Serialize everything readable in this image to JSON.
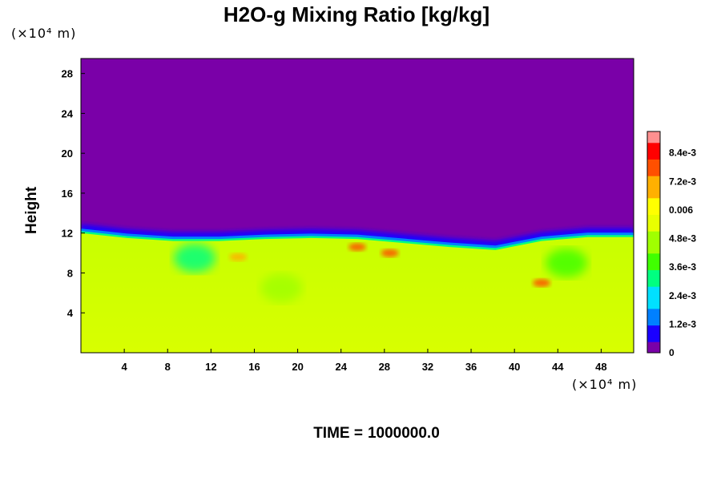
{
  "chart_data": {
    "type": "heatmap",
    "title": "H2O-g Mixing Ratio [kg/kg]",
    "ylabel": "Height",
    "y_unit_label": "(×10⁴ m)",
    "x_unit_label": "(×10⁴ m)",
    "xlim": [
      0,
      51
    ],
    "ylim": [
      0,
      29.5
    ],
    "x_ticks": [
      "4",
      "8",
      "12",
      "16",
      "20",
      "24",
      "28",
      "32",
      "36",
      "40",
      "44",
      "48"
    ],
    "x_tick_values": [
      4,
      8,
      12,
      16,
      20,
      24,
      28,
      32,
      36,
      40,
      44,
      48
    ],
    "y_ticks": [
      "4",
      "8",
      "12",
      "16",
      "20",
      "24",
      "28"
    ],
    "y_tick_values": [
      4,
      8,
      12,
      16,
      20,
      24,
      28
    ],
    "colorbar": {
      "min": 0,
      "max": 0.0093,
      "labels": [
        "0",
        "1.2e-3",
        "2.4e-3",
        "3.6e-3",
        "4.8e-3",
        "0.006",
        "7.2e-3",
        "8.4e-3"
      ],
      "label_values": [
        0,
        0.0012,
        0.0024,
        0.0036,
        0.0048,
        0.006,
        0.0072,
        0.0084
      ],
      "colors": [
        "#7a00a8",
        "#1a00ff",
        "#0080ff",
        "#00e0ff",
        "#00ff80",
        "#40ff00",
        "#a0ff00",
        "#e8ff00",
        "#ffff00",
        "#ffb000",
        "#ff5000",
        "#ff0000",
        "#ff9090"
      ]
    },
    "field_description_values": {
      "dry_layer_value": 0,
      "boundary_height_km_approx": [
        12.0,
        11.5,
        11.2,
        11.2,
        11.4,
        11.5,
        11.4,
        11.0,
        10.6,
        10.3,
        11.2,
        11.6,
        11.6
      ],
      "moist_layer_value": 0.0058
    },
    "features": [
      {
        "x": 18.5,
        "y": 6.5,
        "value": 0.005
      },
      {
        "x": 42.5,
        "y": 7.0,
        "value": 0.0075
      },
      {
        "x": 25.5,
        "y": 10.6,
        "value": 0.008
      },
      {
        "x": 28.5,
        "y": 10.0,
        "value": 0.0078
      },
      {
        "x": 14.5,
        "y": 9.6,
        "value": 0.0072
      },
      {
        "x": 10.5,
        "y": 9.5,
        "value": 0.003
      },
      {
        "x": 44.8,
        "y": 9.0,
        "value": 0.004
      }
    ]
  },
  "time": {
    "label": "TIME =",
    "value": "1000000.0"
  }
}
